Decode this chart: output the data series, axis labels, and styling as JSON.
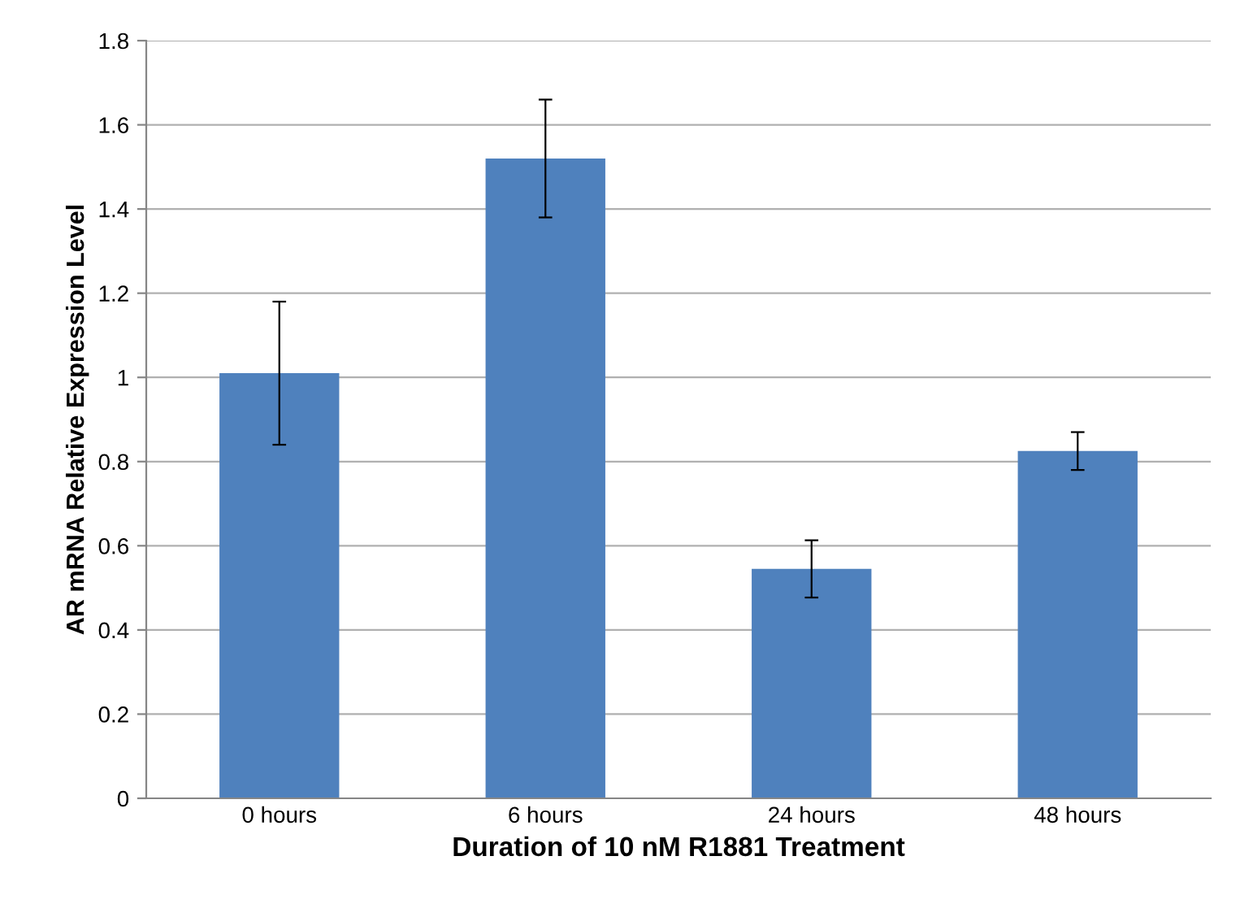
{
  "chart_data": {
    "type": "bar",
    "categories": [
      "0 hours",
      "6 hours",
      "24 hours",
      "48 hours"
    ],
    "values": [
      1.01,
      1.52,
      0.545,
      0.825
    ],
    "errors": [
      0.17,
      0.14,
      0.068,
      0.045
    ],
    "color": "#4f81bd",
    "xlabel": "Duration of 10 nM R1881 Treatment",
    "ylabel": "AR mRNA Relative Expression Level",
    "ylim": [
      0,
      1.8
    ],
    "yticks": [
      0,
      0.2,
      0.4,
      0.6,
      0.8,
      1,
      1.2,
      1.4,
      1.6,
      1.8
    ],
    "grid": "y",
    "legend": false
  }
}
